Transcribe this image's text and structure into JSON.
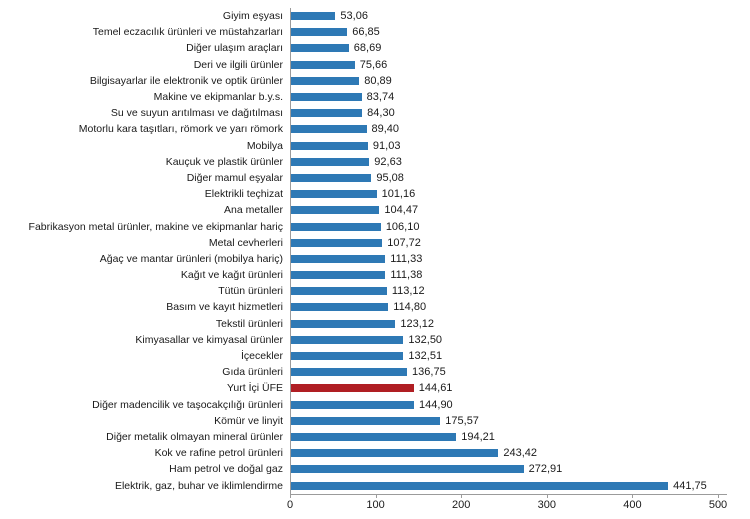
{
  "chart_data": {
    "type": "bar",
    "orientation": "horizontal",
    "title": "",
    "xlabel": "",
    "ylabel": "",
    "grid": false,
    "legend": "none",
    "xlim": [
      0,
      500
    ],
    "x_ticks": [
      0,
      100,
      200,
      300,
      400,
      500
    ],
    "x_tick_labels": [
      "0",
      "100",
      "200",
      "300",
      "400",
      "500"
    ],
    "bar_color": "#2e79b5",
    "highlight_color": "#b01e23",
    "highlight_index": 23,
    "categories": [
      "Giyim eşyası",
      "Temel eczacılık ürünleri ve müstahzarları",
      "Diğer ulaşım araçları",
      "Deri ve ilgili ürünler",
      "Bilgisayarlar ile elektronik ve optik ürünler",
      "Makine ve ekipmanlar b.y.s.",
      "Su ve suyun arıtılması ve dağıtılması",
      "Motorlu kara taşıtları, römork ve yarı römork",
      "Mobilya",
      "Kauçuk ve plastik ürünler",
      "Diğer mamul eşyalar",
      "Elektrikli teçhizat",
      "Ana metaller",
      "Fabrikasyon metal ürünler, makine ve ekipmanlar hariç",
      "Metal cevherleri",
      "Ağaç ve mantar ürünleri (mobilya hariç)",
      "Kağıt ve kağıt ürünleri",
      "Tütün ürünleri",
      "Basım ve kayıt hizmetleri",
      "Tekstil ürünleri",
      "Kimyasallar ve kimyasal ürünler",
      "İçecekler",
      "Gıda ürünleri",
      "Yurt İçi ÜFE",
      "Diğer madencilik ve taşocakçılığı ürünleri",
      "Kömür ve linyit",
      "Diğer metalik olmayan mineral ürünler",
      "Kok ve rafine petrol ürünleri",
      "Ham petrol ve doğal gaz",
      "Elektrik, gaz, buhar ve iklimlendirme"
    ],
    "values": [
      53.06,
      66.85,
      68.69,
      75.66,
      80.89,
      83.74,
      84.3,
      89.4,
      91.03,
      92.63,
      95.08,
      101.16,
      104.47,
      106.1,
      107.72,
      111.33,
      111.38,
      113.12,
      114.8,
      123.12,
      132.5,
      132.51,
      136.75,
      144.61,
      144.9,
      175.57,
      194.21,
      243.42,
      272.91,
      441.75
    ],
    "value_labels": [
      "53,06",
      "66,85",
      "68,69",
      "75,66",
      "80,89",
      "83,74",
      "84,30",
      "89,40",
      "91,03",
      "92,63",
      "95,08",
      "101,16",
      "104,47",
      "106,10",
      "107,72",
      "111,33",
      "111,38",
      "113,12",
      "114,80",
      "123,12",
      "132,50",
      "132,51",
      "136,75",
      "144,61",
      "144,90",
      "175,57",
      "194,21",
      "243,42",
      "272,91",
      "441,75"
    ]
  }
}
